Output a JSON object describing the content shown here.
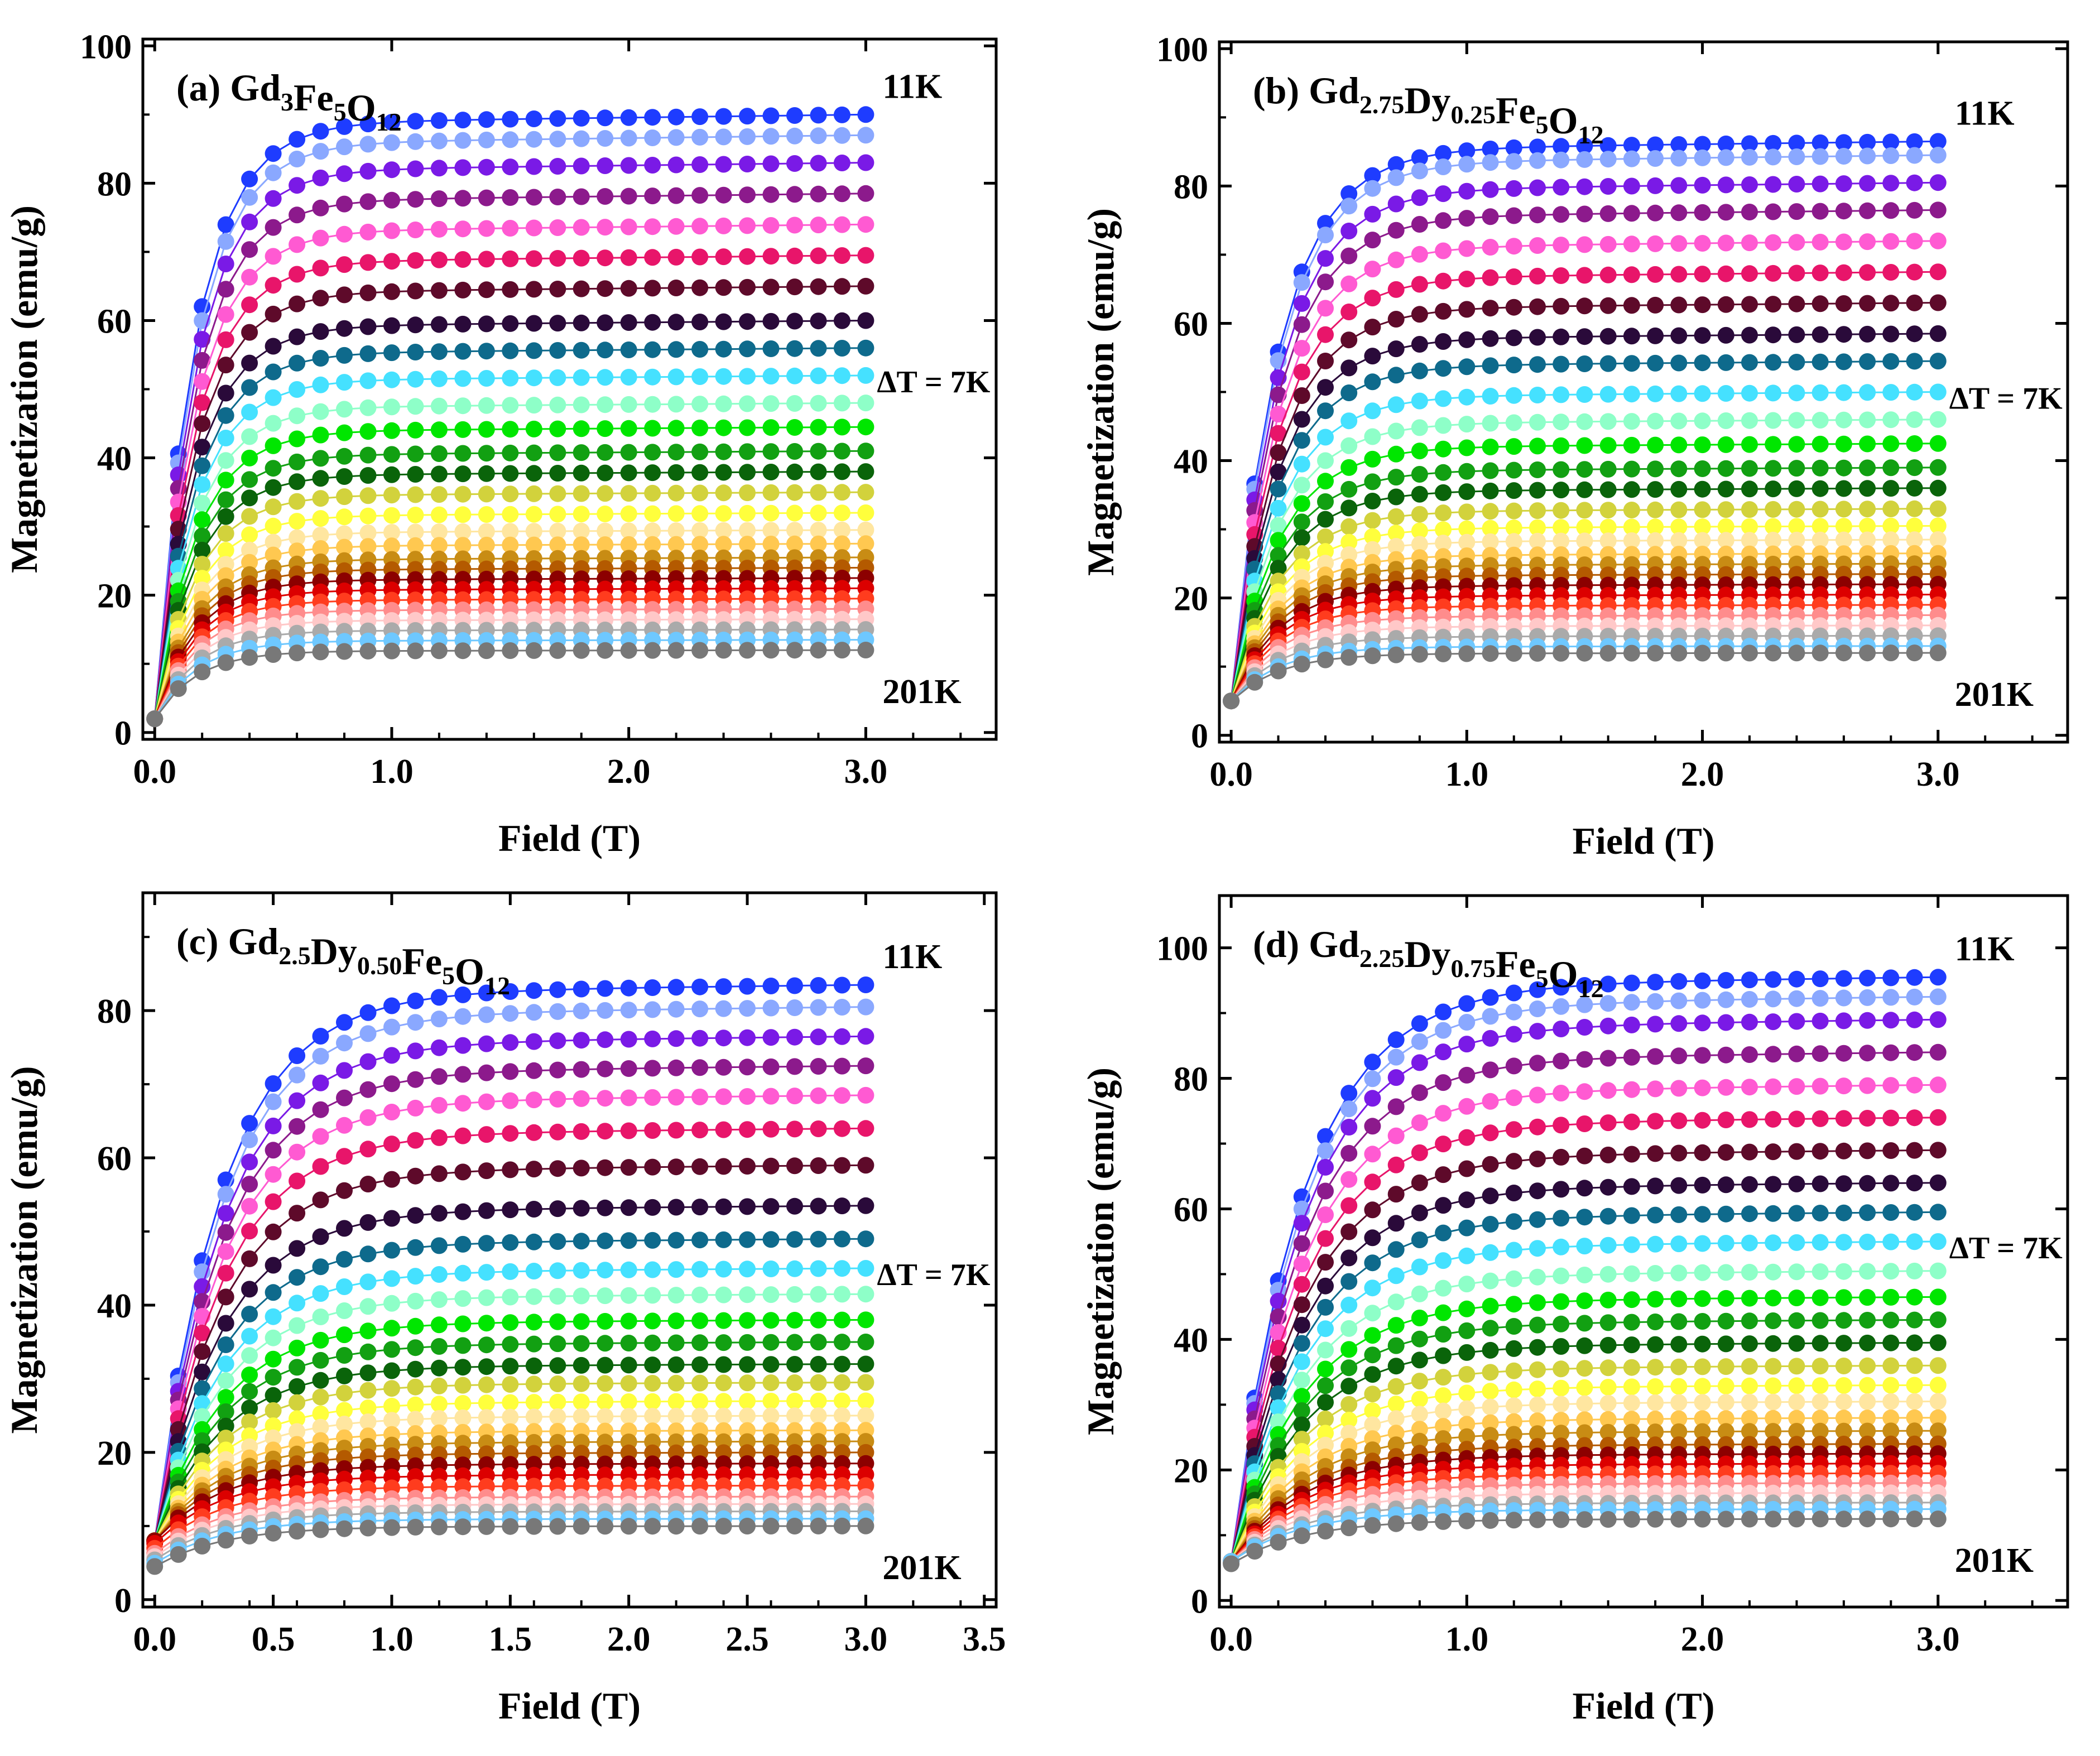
{
  "chart_data": [
    {
      "type": "scatter",
      "panel_label": "(a)",
      "compound": [
        {
          "text": "Gd",
          "sub": "3"
        },
        {
          "text": "Fe",
          "sub": "5"
        },
        {
          "text": "O",
          "sub": "12"
        }
      ],
      "xlabel": "Field (T)",
      "ylabel": "Magnetization (emu/g)",
      "xlim": [
        -0.05,
        3.55
      ],
      "ylim": [
        -1,
        101
      ],
      "xticks": [
        "0.0",
        "1.0",
        "2.0",
        "3.0"
      ],
      "yticks": [
        "0",
        "20",
        "40",
        "60",
        "80",
        "100"
      ],
      "top_label": "11K",
      "bottom_label": "201K",
      "step_label": "ΔT = 7K",
      "series_shape": {
        "M0": 2,
        "rise": 0.17
      },
      "series": [
        {
          "color": "#1e3cff",
          "values_at_3T": 90
        },
        {
          "color": "#8aa8ff",
          "values_at_3T": 87
        },
        {
          "color": "#7a1ae6",
          "values_at_3T": 83
        },
        {
          "color": "#8c1a8c",
          "values_at_3T": 78.5
        },
        {
          "color": "#ff5ad2",
          "values_at_3T": 74
        },
        {
          "color": "#e8156a",
          "values_at_3T": 69.5
        },
        {
          "color": "#5e0a2a",
          "values_at_3T": 65
        },
        {
          "color": "#2a0a3a",
          "values_at_3T": 60
        },
        {
          "color": "#0e6a8c",
          "values_at_3T": 56
        },
        {
          "color": "#45e1ff",
          "values_at_3T": 52
        },
        {
          "color": "#8effc8",
          "values_at_3T": 48
        },
        {
          "color": "#00e600",
          "values_at_3T": 44.5
        },
        {
          "color": "#12a012",
          "values_at_3T": 41
        },
        {
          "color": "#0a640a",
          "values_at_3T": 38
        },
        {
          "color": "#d2d23c",
          "values_at_3T": 35
        },
        {
          "color": "#ffff3c",
          "values_at_3T": 32
        },
        {
          "color": "#ffe6a0",
          "values_at_3T": 29.5
        },
        {
          "color": "#ffc850",
          "values_at_3T": 27.5
        },
        {
          "color": "#c88c14",
          "values_at_3T": 25.5
        },
        {
          "color": "#b45a00",
          "values_at_3T": 24
        },
        {
          "color": "#8c0000",
          "values_at_3T": 22.5
        },
        {
          "color": "#dc0000",
          "values_at_3T": 21
        },
        {
          "color": "#ff3c1e",
          "values_at_3T": 19.5
        },
        {
          "color": "#ff8c8c",
          "values_at_3T": 18
        },
        {
          "color": "#ffc8c8",
          "values_at_3T": 16.5
        },
        {
          "color": "#aaaaaa",
          "values_at_3T": 15
        },
        {
          "color": "#6ec8ff",
          "values_at_3T": 13.5
        },
        {
          "color": "#787878",
          "values_at_3T": 12
        }
      ]
    },
    {
      "type": "scatter",
      "panel_label": "(b)",
      "compound": [
        {
          "text": "Gd",
          "sub": "2.75"
        },
        {
          "text": "Dy",
          "sub": "0.25"
        },
        {
          "text": "Fe",
          "sub": "5"
        },
        {
          "text": "O",
          "sub": "12"
        }
      ],
      "xlabel": "Field (T)",
      "ylabel": "Magnetization (emu/g)",
      "xlim": [
        -0.05,
        3.55
      ],
      "ylim": [
        -1,
        101
      ],
      "xticks": [
        "0.0",
        "1.0",
        "2.0",
        "3.0"
      ],
      "yticks": [
        "0",
        "20",
        "40",
        "60",
        "80",
        "100"
      ],
      "top_label": "11K",
      "bottom_label": "201K",
      "step_label": "ΔT = 7K",
      "series_shape": {
        "M0": 5,
        "rise": 0.2
      },
      "series": [
        {
          "color": "#1e3cff",
          "values_at_3T": 86.5
        },
        {
          "color": "#8aa8ff",
          "values_at_3T": 84.5
        },
        {
          "color": "#7a1ae6",
          "values_at_3T": 80.5
        },
        {
          "color": "#8c1a8c",
          "values_at_3T": 76.5
        },
        {
          "color": "#ff5ad2",
          "values_at_3T": 72
        },
        {
          "color": "#e8156a",
          "values_at_3T": 67.5
        },
        {
          "color": "#5e0a2a",
          "values_at_3T": 63
        },
        {
          "color": "#2a0a3a",
          "values_at_3T": 58.5
        },
        {
          "color": "#0e6a8c",
          "values_at_3T": 54.5
        },
        {
          "color": "#45e1ff",
          "values_at_3T": 50
        },
        {
          "color": "#8effc8",
          "values_at_3T": 46
        },
        {
          "color": "#00e600",
          "values_at_3T": 42.5
        },
        {
          "color": "#12a012",
          "values_at_3T": 39
        },
        {
          "color": "#0a640a",
          "values_at_3T": 36
        },
        {
          "color": "#d2d23c",
          "values_at_3T": 33
        },
        {
          "color": "#ffff3c",
          "values_at_3T": 30.5
        },
        {
          "color": "#ffe6a0",
          "values_at_3T": 28.5
        },
        {
          "color": "#ffc850",
          "values_at_3T": 26.5
        },
        {
          "color": "#c88c14",
          "values_at_3T": 25
        },
        {
          "color": "#b45a00",
          "values_at_3T": 23.5
        },
        {
          "color": "#8c0000",
          "values_at_3T": 22
        },
        {
          "color": "#dc0000",
          "values_at_3T": 20.5
        },
        {
          "color": "#ff3c1e",
          "values_at_3T": 19
        },
        {
          "color": "#ff8c8c",
          "values_at_3T": 17.5
        },
        {
          "color": "#ffc8c8",
          "values_at_3T": 16
        },
        {
          "color": "#aaaaaa",
          "values_at_3T": 14.5
        },
        {
          "color": "#6ec8ff",
          "values_at_3T": 13
        },
        {
          "color": "#787878",
          "values_at_3T": 12
        }
      ]
    },
    {
      "type": "scatter",
      "panel_label": "(c)",
      "compound": [
        {
          "text": "Gd",
          "sub": "2.5"
        },
        {
          "text": "Dy",
          "sub": "0.50"
        },
        {
          "text": "Fe",
          "sub": "5"
        },
        {
          "text": "O",
          "sub": "12"
        }
      ],
      "xlabel": "Field (T)",
      "ylabel": "Magnetization (emu/g)",
      "xlim": [
        -0.05,
        3.55
      ],
      "ylim": [
        -1,
        96
      ],
      "xticks": [
        "0.0",
        "0.5",
        "1.0",
        "1.5",
        "2.0",
        "2.5",
        "3.0",
        "3.5"
      ],
      "yticks": [
        "0",
        "20",
        "40",
        "60",
        "80"
      ],
      "top_label": "11K",
      "bottom_label": "201K",
      "step_label": "ΔT = 7K",
      "series_shape": {
        "M0": 8,
        "rise": 0.28
      },
      "series": [
        {
          "color": "#1e3cff",
          "values_at_3T": 83.5
        },
        {
          "color": "#8aa8ff",
          "values_at_3T": 80.5
        },
        {
          "color": "#7a1ae6",
          "values_at_3T": 76.5
        },
        {
          "color": "#8c1a8c",
          "values_at_3T": 72.5
        },
        {
          "color": "#ff5ad2",
          "values_at_3T": 68.5
        },
        {
          "color": "#e8156a",
          "values_at_3T": 64
        },
        {
          "color": "#5e0a2a",
          "values_at_3T": 59
        },
        {
          "color": "#2a0a3a",
          "values_at_3T": 53.5
        },
        {
          "color": "#0e6a8c",
          "values_at_3T": 49
        },
        {
          "color": "#45e1ff",
          "values_at_3T": 45
        },
        {
          "color": "#8effc8",
          "values_at_3T": 41.5
        },
        {
          "color": "#00e600",
          "values_at_3T": 38
        },
        {
          "color": "#12a012",
          "values_at_3T": 35
        },
        {
          "color": "#0a640a",
          "values_at_3T": 32
        },
        {
          "color": "#d2d23c",
          "values_at_3T": 29.5
        },
        {
          "color": "#ffff3c",
          "values_at_3T": 27
        },
        {
          "color": "#ffe6a0",
          "values_at_3T": 25
        },
        {
          "color": "#ffc850",
          "values_at_3T": 23
        },
        {
          "color": "#c88c14",
          "values_at_3T": 21.5
        },
        {
          "color": "#b45a00",
          "values_at_3T": 20
        },
        {
          "color": "#8c0000",
          "values_at_3T": 18.5
        },
        {
          "color": "#dc0000",
          "values_at_3T": 17
        },
        {
          "color": "#ff3c1e",
          "values_at_3T": 15.5
        },
        {
          "color": "#ff8c8c",
          "values_at_3T": 14
        },
        {
          "color": "#ffc8c8",
          "values_at_3T": 13
        },
        {
          "color": "#aaaaaa",
          "values_at_3T": 12
        },
        {
          "color": "#6ec8ff",
          "values_at_3T": 11
        },
        {
          "color": "#787878",
          "values_at_3T": 10
        }
      ]
    },
    {
      "type": "scatter",
      "panel_label": "(d)",
      "compound": [
        {
          "text": "Gd",
          "sub": "2.25"
        },
        {
          "text": "Dy",
          "sub": "0.75"
        },
        {
          "text": "Fe",
          "sub": "5"
        },
        {
          "text": "O",
          "sub": "12"
        }
      ],
      "xlabel": "Field (T)",
      "ylabel": "Magnetization (emu/g)",
      "xlim": [
        -0.05,
        3.55
      ],
      "ylim": [
        -1,
        108
      ],
      "xticks": [
        "0.0",
        "1.0",
        "2.0",
        "3.0"
      ],
      "yticks": [
        "0",
        "20",
        "40",
        "60",
        "80",
        "100"
      ],
      "top_label": "11K",
      "bottom_label": "201K",
      "step_label": "ΔT = 7K",
      "series_shape": {
        "M0": 6,
        "rise": 0.3
      },
      "series": [
        {
          "color": "#1e3cff",
          "values_at_3T": 95.5
        },
        {
          "color": "#8aa8ff",
          "values_at_3T": 92.5
        },
        {
          "color": "#7a1ae6",
          "values_at_3T": 89
        },
        {
          "color": "#8c1a8c",
          "values_at_3T": 84
        },
        {
          "color": "#ff5ad2",
          "values_at_3T": 79
        },
        {
          "color": "#e8156a",
          "values_at_3T": 74
        },
        {
          "color": "#5e0a2a",
          "values_at_3T": 69
        },
        {
          "color": "#2a0a3a",
          "values_at_3T": 64
        },
        {
          "color": "#0e6a8c",
          "values_at_3T": 59.5
        },
        {
          "color": "#45e1ff",
          "values_at_3T": 55
        },
        {
          "color": "#8effc8",
          "values_at_3T": 50.5
        },
        {
          "color": "#00e600",
          "values_at_3T": 46.5
        },
        {
          "color": "#12a012",
          "values_at_3T": 43
        },
        {
          "color": "#0a640a",
          "values_at_3T": 39.5
        },
        {
          "color": "#d2d23c",
          "values_at_3T": 36
        },
        {
          "color": "#ffff3c",
          "values_at_3T": 33
        },
        {
          "color": "#ffe6a0",
          "values_at_3T": 30.5
        },
        {
          "color": "#ffc850",
          "values_at_3T": 28
        },
        {
          "color": "#c88c14",
          "values_at_3T": 26
        },
        {
          "color": "#b45a00",
          "values_at_3T": 24
        },
        {
          "color": "#8c0000",
          "values_at_3T": 22.5
        },
        {
          "color": "#dc0000",
          "values_at_3T": 21
        },
        {
          "color": "#ff3c1e",
          "values_at_3T": 19.5
        },
        {
          "color": "#ff8c8c",
          "values_at_3T": 18
        },
        {
          "color": "#ffc8c8",
          "values_at_3T": 16.5
        },
        {
          "color": "#aaaaaa",
          "values_at_3T": 15
        },
        {
          "color": "#6ec8ff",
          "values_at_3T": 14
        },
        {
          "color": "#787878",
          "values_at_3T": 12.5
        }
      ]
    }
  ],
  "field_points_T": [
    0,
    0.1,
    0.2,
    0.3,
    0.4,
    0.5,
    0.6,
    0.7,
    0.8,
    0.9,
    1.0,
    1.1,
    1.2,
    1.3,
    1.4,
    1.5,
    1.6,
    1.7,
    1.8,
    1.9,
    2.0,
    2.1,
    2.2,
    2.3,
    2.4,
    2.5,
    2.6,
    2.7,
    2.8,
    2.9,
    3.0
  ]
}
